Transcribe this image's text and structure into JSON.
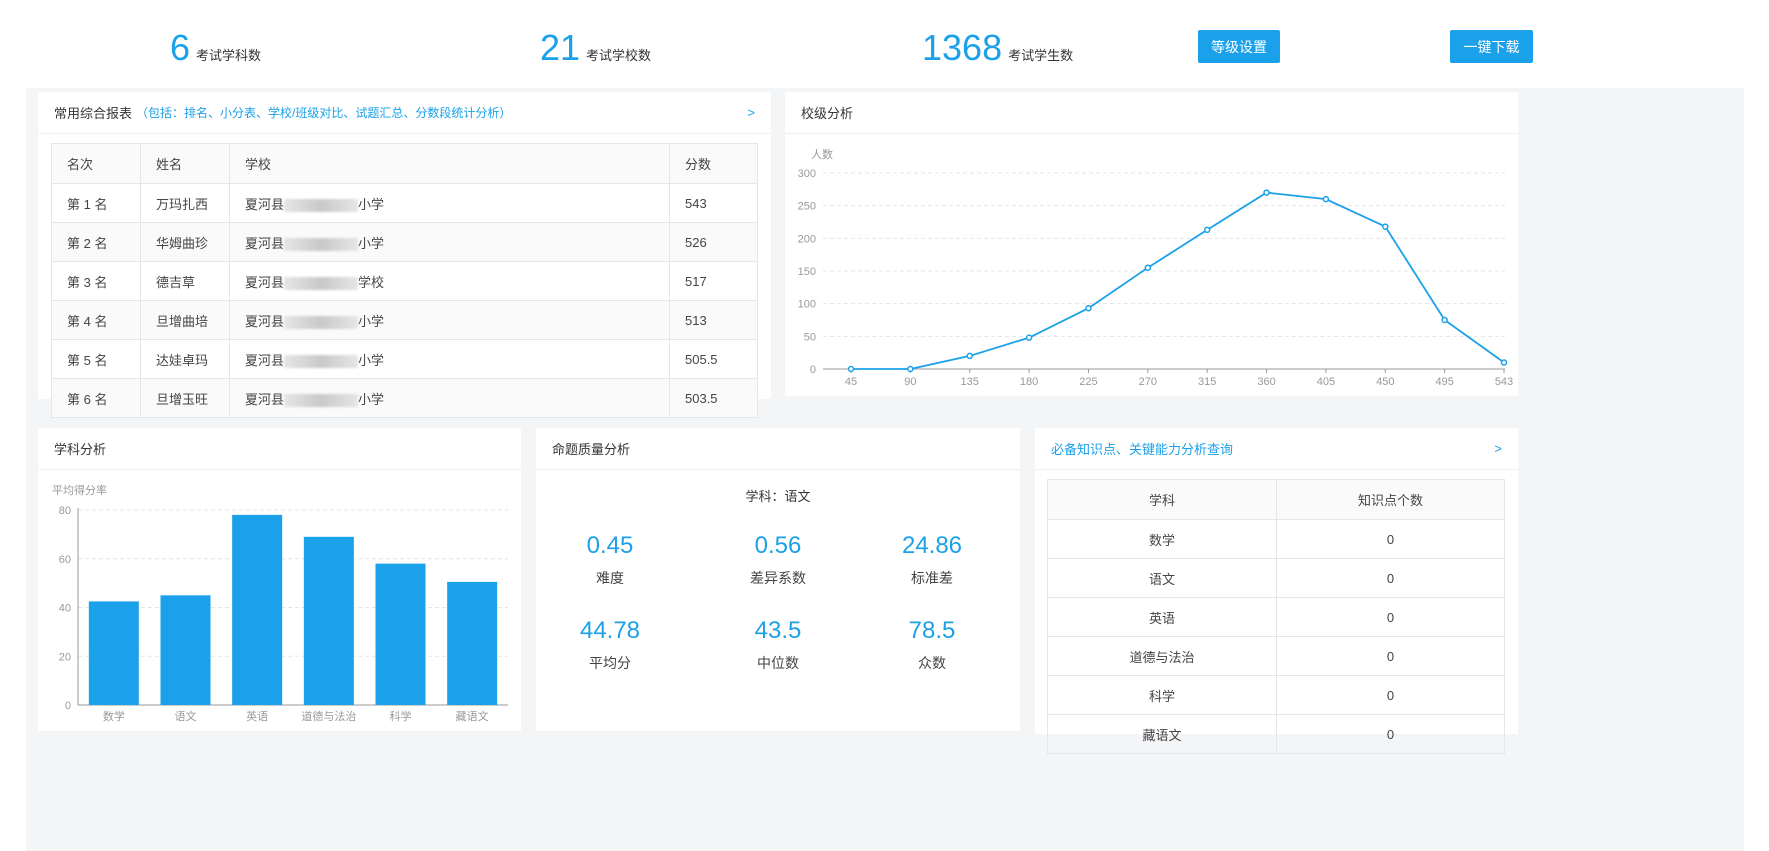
{
  "header": {
    "stats": [
      {
        "value": "6",
        "label": "考试学科数"
      },
      {
        "value": "21",
        "label": "考试学校数"
      },
      {
        "value": "1368",
        "label": "考试学生数"
      }
    ],
    "grade_settings_label": "等级设置",
    "download_label": "一键下载"
  },
  "report": {
    "title": "常用综合报表",
    "subtitle": "（包括：排名、小分表、学校/班级对比、试题汇总、分数段统计分析）",
    "arrow": ">",
    "columns": [
      "名次",
      "姓名",
      "学校",
      "分数"
    ],
    "rows": [
      {
        "rank": "第 1 名",
        "name": "万玛扎西",
        "school_pre": "夏河县",
        "school_suf": "小学",
        "score": "543"
      },
      {
        "rank": "第 2 名",
        "name": "华姆曲珍",
        "school_pre": "夏河县",
        "school_suf": "小学",
        "score": "526"
      },
      {
        "rank": "第 3 名",
        "name": "德吉草",
        "school_pre": "夏河县",
        "school_suf": "学校",
        "score": "517"
      },
      {
        "rank": "第 4 名",
        "name": "旦增曲培",
        "school_pre": "夏河县",
        "school_suf": "小学",
        "score": "513"
      },
      {
        "rank": "第 5 名",
        "name": "达娃卓玛",
        "school_pre": "夏河县",
        "school_suf": "小学",
        "score": "505.5"
      },
      {
        "rank": "第 6 名",
        "name": "旦增玉旺",
        "school_pre": "夏河县",
        "school_suf": "小学",
        "score": "503.5"
      }
    ]
  },
  "school_analysis": {
    "title": "校级分析"
  },
  "subject_analysis": {
    "title": "学科分析"
  },
  "quality": {
    "title": "命题质量分析",
    "subject": "学科：语文",
    "metrics": [
      {
        "value": "0.45",
        "label": "难度"
      },
      {
        "value": "0.56",
        "label": "差异系数"
      },
      {
        "value": "24.86",
        "label": "标准差"
      },
      {
        "value": "44.78",
        "label": "平均分"
      },
      {
        "value": "43.5",
        "label": "中位数"
      },
      {
        "value": "78.5",
        "label": "众数"
      }
    ]
  },
  "knowledge": {
    "title": "必备知识点、关键能力分析查询",
    "arrow": ">",
    "columns": [
      "学科",
      "知识点个数"
    ],
    "rows": [
      {
        "subject": "数学",
        "count": "0"
      },
      {
        "subject": "语文",
        "count": "0"
      },
      {
        "subject": "英语",
        "count": "0"
      },
      {
        "subject": "道德与法治",
        "count": "0"
      },
      {
        "subject": "科学",
        "count": "0"
      },
      {
        "subject": "藏语文",
        "count": "0"
      }
    ]
  },
  "colors": {
    "accent": "#1ba1e9"
  },
  "chart_data": [
    {
      "type": "line",
      "ylabel": "人数",
      "x": [
        "45",
        "90",
        "135",
        "180",
        "225",
        "270",
        "315",
        "360",
        "405",
        "450",
        "495",
        "543"
      ],
      "values": [
        0,
        0,
        20,
        48,
        93,
        155,
        213,
        270,
        260,
        218,
        75,
        10
      ],
      "ylim": [
        0,
        300
      ],
      "yticks": [
        0,
        50,
        100,
        150,
        200,
        250,
        300
      ],
      "grid": true
    },
    {
      "type": "bar",
      "ylabel": "平均得分率",
      "categories": [
        "数学",
        "语文",
        "英语",
        "道德与法治",
        "科学",
        "藏语文"
      ],
      "values": [
        42.5,
        45,
        78,
        69,
        58,
        50.5
      ],
      "ylim": [
        0,
        80
      ],
      "yticks": [
        0,
        20,
        40,
        60,
        80
      ],
      "grid": true
    }
  ]
}
